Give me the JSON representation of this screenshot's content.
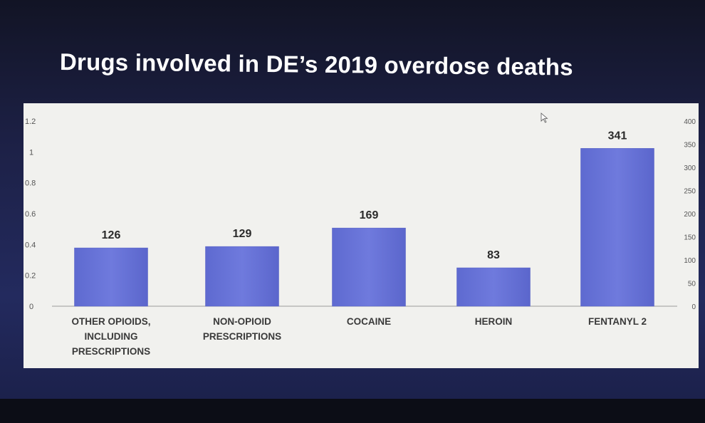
{
  "slide": {
    "title": "Drugs involved in DE’s 2019 overdose deaths"
  },
  "chart_data": {
    "type": "bar",
    "categories": [
      [
        "OTHER OPIOIDS,",
        "INCLUDING",
        "PRESCRIPTIONS"
      ],
      [
        "NON-OPIOID",
        "PRESCRIPTIONS"
      ],
      [
        "COCAINE"
      ],
      [
        "HEROIN"
      ],
      [
        "FENTANYL 2"
      ]
    ],
    "values": [
      126,
      129,
      169,
      83,
      341
    ],
    "data_labels": [
      "126",
      "129",
      "169",
      "83",
      "341"
    ],
    "left_axis": {
      "ylim": [
        0,
        1.2
      ],
      "ticks": [
        "0",
        "0.2",
        "0.4",
        "0.6",
        "0.8",
        "1",
        "1.2"
      ]
    },
    "right_axis": {
      "ylim": [
        0,
        400
      ],
      "ticks": [
        "0",
        "50",
        "100",
        "150",
        "200",
        "250",
        "300",
        "350",
        "400"
      ]
    },
    "bar_color": "#6873d6",
    "grid": false,
    "legend": "none"
  }
}
